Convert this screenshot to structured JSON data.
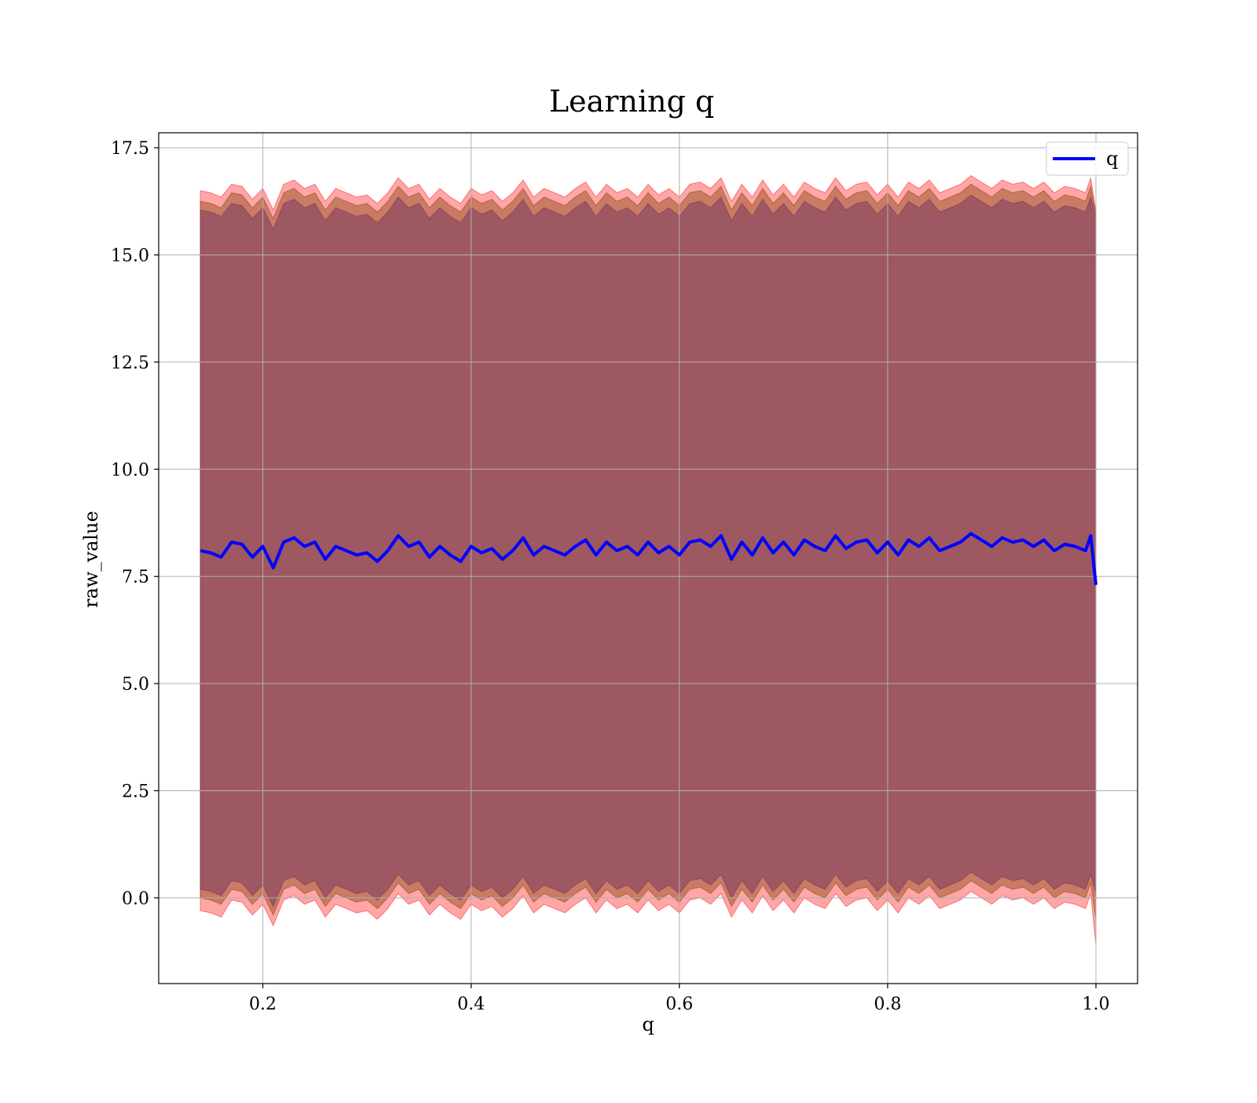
{
  "chart_data": {
    "type": "line",
    "title": "Learning q",
    "xlabel": "q",
    "ylabel": "raw_value",
    "xlim": [
      0.1,
      1.04
    ],
    "ylim": [
      -2,
      17.85
    ],
    "x_ticks": [
      0.2,
      0.4,
      0.6,
      0.8,
      1.0
    ],
    "x_tick_labels": [
      "0.2",
      "0.4",
      "0.6",
      "0.8",
      "1.0"
    ],
    "y_ticks": [
      0.0,
      2.5,
      5.0,
      7.5,
      10.0,
      12.5,
      15.0,
      17.5
    ],
    "y_tick_labels": [
      "0.0",
      "2.5",
      "5.0",
      "7.5",
      "10.0",
      "12.5",
      "15.0",
      "17.5"
    ],
    "grid": true,
    "legend_position": "top-right",
    "legend": [
      {
        "label": "q",
        "color": "#0000ff"
      }
    ],
    "series": [
      {
        "name": "q",
        "color": "#0000ff",
        "x": [
          0.14,
          0.15,
          0.16,
          0.17,
          0.18,
          0.19,
          0.2,
          0.21,
          0.22,
          0.23,
          0.24,
          0.25,
          0.26,
          0.27,
          0.28,
          0.29,
          0.3,
          0.31,
          0.32,
          0.33,
          0.34,
          0.35,
          0.36,
          0.37,
          0.38,
          0.39,
          0.4,
          0.41,
          0.42,
          0.43,
          0.44,
          0.45,
          0.46,
          0.47,
          0.48,
          0.49,
          0.5,
          0.51,
          0.52,
          0.53,
          0.54,
          0.55,
          0.56,
          0.57,
          0.58,
          0.59,
          0.6,
          0.61,
          0.62,
          0.63,
          0.64,
          0.65,
          0.66,
          0.67,
          0.68,
          0.69,
          0.7,
          0.71,
          0.72,
          0.73,
          0.74,
          0.75,
          0.76,
          0.77,
          0.78,
          0.79,
          0.8,
          0.81,
          0.82,
          0.83,
          0.84,
          0.85,
          0.86,
          0.87,
          0.88,
          0.89,
          0.9,
          0.91,
          0.92,
          0.93,
          0.94,
          0.95,
          0.96,
          0.97,
          0.98,
          0.99,
          0.995,
          1.0
        ],
        "y": [
          8.1,
          8.05,
          7.95,
          8.3,
          8.25,
          7.95,
          8.2,
          7.7,
          8.3,
          8.4,
          8.2,
          8.3,
          7.9,
          8.2,
          8.1,
          8.0,
          8.05,
          7.85,
          8.1,
          8.45,
          8.2,
          8.3,
          7.95,
          8.2,
          8.0,
          7.85,
          8.2,
          8.05,
          8.15,
          7.9,
          8.1,
          8.4,
          8.0,
          8.2,
          8.1,
          8.0,
          8.2,
          8.35,
          8.0,
          8.3,
          8.1,
          8.2,
          8.0,
          8.3,
          8.05,
          8.2,
          8.0,
          8.3,
          8.35,
          8.2,
          8.45,
          7.9,
          8.3,
          8.0,
          8.4,
          8.05,
          8.3,
          8.0,
          8.35,
          8.2,
          8.1,
          8.45,
          8.15,
          8.3,
          8.35,
          8.05,
          8.3,
          8.0,
          8.35,
          8.2,
          8.4,
          8.1,
          8.2,
          8.3,
          8.5,
          8.35,
          8.2,
          8.4,
          8.3,
          8.35,
          8.2,
          8.35,
          8.1,
          8.25,
          8.2,
          8.1,
          8.45,
          7.3
        ]
      }
    ],
    "bands": [
      {
        "color": "#ff0000",
        "opacity": 0.35,
        "x": [
          0.14,
          0.15,
          0.16,
          0.17,
          0.18,
          0.19,
          0.2,
          0.21,
          0.22,
          0.23,
          0.24,
          0.25,
          0.26,
          0.27,
          0.28,
          0.29,
          0.3,
          0.31,
          0.32,
          0.33,
          0.34,
          0.35,
          0.36,
          0.37,
          0.38,
          0.39,
          0.4,
          0.41,
          0.42,
          0.43,
          0.44,
          0.45,
          0.46,
          0.47,
          0.48,
          0.49,
          0.5,
          0.51,
          0.52,
          0.53,
          0.54,
          0.55,
          0.56,
          0.57,
          0.58,
          0.59,
          0.6,
          0.61,
          0.62,
          0.63,
          0.64,
          0.65,
          0.66,
          0.67,
          0.68,
          0.69,
          0.7,
          0.71,
          0.72,
          0.73,
          0.74,
          0.75,
          0.76,
          0.77,
          0.78,
          0.79,
          0.8,
          0.81,
          0.82,
          0.83,
          0.84,
          0.85,
          0.86,
          0.87,
          0.88,
          0.89,
          0.9,
          0.91,
          0.92,
          0.93,
          0.94,
          0.95,
          0.96,
          0.97,
          0.98,
          0.99,
          0.995,
          1.0
        ],
        "upper": [
          16.5,
          16.45,
          16.35,
          16.65,
          16.6,
          16.3,
          16.55,
          16.05,
          16.65,
          16.75,
          16.55,
          16.65,
          16.25,
          16.55,
          16.45,
          16.35,
          16.4,
          16.2,
          16.45,
          16.8,
          16.55,
          16.65,
          16.3,
          16.55,
          16.35,
          16.2,
          16.55,
          16.4,
          16.5,
          16.25,
          16.45,
          16.75,
          16.35,
          16.55,
          16.45,
          16.35,
          16.55,
          16.7,
          16.35,
          16.65,
          16.45,
          16.55,
          16.35,
          16.65,
          16.4,
          16.55,
          16.35,
          16.65,
          16.7,
          16.55,
          16.8,
          16.25,
          16.65,
          16.35,
          16.75,
          16.4,
          16.65,
          16.35,
          16.7,
          16.55,
          16.45,
          16.8,
          16.5,
          16.65,
          16.7,
          16.4,
          16.65,
          16.35,
          16.7,
          16.55,
          16.75,
          16.45,
          16.55,
          16.65,
          16.85,
          16.7,
          16.55,
          16.75,
          16.65,
          16.7,
          16.55,
          16.7,
          16.45,
          16.6,
          16.55,
          16.45,
          16.8,
          16.0
        ],
        "lower": [
          -0.3,
          -0.35,
          -0.45,
          -0.05,
          -0.1,
          -0.4,
          -0.15,
          -0.65,
          -0.05,
          0.05,
          -0.15,
          -0.05,
          -0.45,
          -0.15,
          -0.25,
          -0.35,
          -0.3,
          -0.5,
          -0.25,
          0.1,
          -0.15,
          -0.05,
          -0.4,
          -0.15,
          -0.35,
          -0.5,
          -0.15,
          -0.3,
          -0.2,
          -0.45,
          -0.25,
          0.05,
          -0.35,
          -0.15,
          -0.25,
          -0.35,
          -0.15,
          0.0,
          -0.35,
          -0.05,
          -0.25,
          -0.15,
          -0.35,
          -0.05,
          -0.3,
          -0.15,
          -0.35,
          -0.05,
          0.0,
          -0.15,
          0.1,
          -0.45,
          -0.05,
          -0.35,
          0.05,
          -0.3,
          -0.05,
          -0.35,
          0.0,
          -0.15,
          -0.25,
          0.1,
          -0.2,
          -0.05,
          0.0,
          -0.3,
          -0.05,
          -0.35,
          0.0,
          -0.15,
          0.05,
          -0.25,
          -0.15,
          -0.05,
          0.15,
          0.0,
          -0.15,
          0.05,
          -0.05,
          0.0,
          -0.15,
          0.0,
          -0.25,
          -0.1,
          -0.15,
          -0.25,
          0.1,
          -1.1
        ]
      },
      {
        "color": "#8b4513",
        "opacity": 0.45,
        "x": [
          0.14,
          0.15,
          0.16,
          0.17,
          0.18,
          0.19,
          0.2,
          0.21,
          0.22,
          0.23,
          0.24,
          0.25,
          0.26,
          0.27,
          0.28,
          0.29,
          0.3,
          0.31,
          0.32,
          0.33,
          0.34,
          0.35,
          0.36,
          0.37,
          0.38,
          0.39,
          0.4,
          0.41,
          0.42,
          0.43,
          0.44,
          0.45,
          0.46,
          0.47,
          0.48,
          0.49,
          0.5,
          0.51,
          0.52,
          0.53,
          0.54,
          0.55,
          0.56,
          0.57,
          0.58,
          0.59,
          0.6,
          0.61,
          0.62,
          0.63,
          0.64,
          0.65,
          0.66,
          0.67,
          0.68,
          0.69,
          0.7,
          0.71,
          0.72,
          0.73,
          0.74,
          0.75,
          0.76,
          0.77,
          0.78,
          0.79,
          0.8,
          0.81,
          0.82,
          0.83,
          0.84,
          0.85,
          0.86,
          0.87,
          0.88,
          0.89,
          0.9,
          0.91,
          0.92,
          0.93,
          0.94,
          0.95,
          0.96,
          0.97,
          0.98,
          0.99,
          0.995,
          1.0
        ],
        "upper": [
          16.25,
          16.2,
          16.1,
          16.45,
          16.4,
          16.1,
          16.35,
          15.85,
          16.45,
          16.55,
          16.35,
          16.45,
          16.05,
          16.35,
          16.25,
          16.15,
          16.2,
          16.0,
          16.25,
          16.6,
          16.35,
          16.45,
          16.1,
          16.35,
          16.15,
          16.0,
          16.35,
          16.2,
          16.3,
          16.05,
          16.25,
          16.55,
          16.15,
          16.35,
          16.25,
          16.15,
          16.35,
          16.5,
          16.15,
          16.45,
          16.25,
          16.35,
          16.15,
          16.45,
          16.2,
          16.35,
          16.15,
          16.45,
          16.5,
          16.35,
          16.6,
          16.05,
          16.45,
          16.15,
          16.55,
          16.2,
          16.45,
          16.15,
          16.5,
          16.35,
          16.25,
          16.6,
          16.3,
          16.45,
          16.5,
          16.2,
          16.45,
          16.15,
          16.5,
          16.35,
          16.55,
          16.25,
          16.35,
          16.45,
          16.65,
          16.5,
          16.35,
          16.55,
          16.45,
          16.5,
          16.35,
          16.5,
          16.25,
          16.4,
          16.35,
          16.25,
          16.6,
          16.0
        ],
        "lower": [
          0.0,
          -0.05,
          -0.15,
          0.2,
          0.15,
          -0.15,
          0.1,
          -0.4,
          0.2,
          0.3,
          0.1,
          0.2,
          -0.2,
          0.1,
          0.0,
          -0.1,
          -0.05,
          -0.25,
          0.0,
          0.35,
          0.1,
          0.2,
          -0.15,
          0.1,
          -0.1,
          -0.25,
          0.1,
          -0.05,
          0.05,
          -0.2,
          0.0,
          0.3,
          -0.1,
          0.1,
          0.0,
          -0.1,
          0.1,
          0.25,
          -0.1,
          0.2,
          0.0,
          0.1,
          -0.1,
          0.2,
          -0.05,
          0.1,
          -0.1,
          0.2,
          0.25,
          0.1,
          0.35,
          -0.2,
          0.2,
          -0.1,
          0.3,
          -0.05,
          0.2,
          -0.1,
          0.25,
          0.1,
          0.0,
          0.35,
          0.05,
          0.2,
          0.25,
          -0.05,
          0.2,
          -0.1,
          0.25,
          0.1,
          0.3,
          0.0,
          0.1,
          0.2,
          0.4,
          0.25,
          0.1,
          0.3,
          0.2,
          0.25,
          0.1,
          0.25,
          0.0,
          0.15,
          0.1,
          0.0,
          0.35,
          -0.5
        ]
      },
      {
        "color": "#7a3c5e",
        "opacity": 0.55,
        "x": [
          0.14,
          0.15,
          0.16,
          0.17,
          0.18,
          0.19,
          0.2,
          0.21,
          0.22,
          0.23,
          0.24,
          0.25,
          0.26,
          0.27,
          0.28,
          0.29,
          0.3,
          0.31,
          0.32,
          0.33,
          0.34,
          0.35,
          0.36,
          0.37,
          0.38,
          0.39,
          0.4,
          0.41,
          0.42,
          0.43,
          0.44,
          0.45,
          0.46,
          0.47,
          0.48,
          0.49,
          0.5,
          0.51,
          0.52,
          0.53,
          0.54,
          0.55,
          0.56,
          0.57,
          0.58,
          0.59,
          0.6,
          0.61,
          0.62,
          0.63,
          0.64,
          0.65,
          0.66,
          0.67,
          0.68,
          0.69,
          0.7,
          0.71,
          0.72,
          0.73,
          0.74,
          0.75,
          0.76,
          0.77,
          0.78,
          0.79,
          0.8,
          0.81,
          0.82,
          0.83,
          0.84,
          0.85,
          0.86,
          0.87,
          0.88,
          0.89,
          0.9,
          0.91,
          0.92,
          0.93,
          0.94,
          0.95,
          0.96,
          0.97,
          0.98,
          0.99,
          0.995,
          1.0
        ],
        "upper": [
          16.05,
          16.0,
          15.9,
          16.2,
          16.15,
          15.85,
          16.1,
          15.6,
          16.2,
          16.3,
          16.1,
          16.2,
          15.8,
          16.1,
          16.0,
          15.9,
          15.95,
          15.75,
          16.0,
          16.35,
          16.1,
          16.2,
          15.85,
          16.1,
          15.9,
          15.75,
          16.1,
          15.95,
          16.05,
          15.8,
          16.0,
          16.3,
          15.9,
          16.1,
          16.0,
          15.9,
          16.1,
          16.25,
          15.9,
          16.2,
          16.0,
          16.1,
          15.9,
          16.2,
          15.95,
          16.1,
          15.9,
          16.2,
          16.25,
          16.1,
          16.35,
          15.8,
          16.2,
          15.9,
          16.3,
          15.95,
          16.2,
          15.9,
          16.25,
          16.1,
          16.0,
          16.35,
          16.05,
          16.2,
          16.25,
          15.95,
          16.2,
          15.9,
          16.25,
          16.1,
          16.3,
          16.0,
          16.1,
          16.2,
          16.4,
          16.25,
          16.1,
          16.3,
          16.2,
          16.25,
          16.1,
          16.25,
          16.0,
          16.15,
          16.1,
          16.0,
          16.35,
          15.9
        ],
        "lower": [
          0.2,
          0.15,
          0.05,
          0.4,
          0.35,
          0.05,
          0.3,
          -0.2,
          0.4,
          0.5,
          0.3,
          0.4,
          0.0,
          0.3,
          0.2,
          0.1,
          0.15,
          -0.05,
          0.2,
          0.55,
          0.3,
          0.4,
          0.05,
          0.3,
          0.1,
          -0.05,
          0.3,
          0.15,
          0.25,
          0.0,
          0.2,
          0.5,
          0.1,
          0.3,
          0.2,
          0.1,
          0.3,
          0.45,
          0.1,
          0.4,
          0.2,
          0.3,
          0.1,
          0.4,
          0.15,
          0.3,
          0.1,
          0.4,
          0.45,
          0.3,
          0.55,
          0.0,
          0.4,
          0.1,
          0.5,
          0.15,
          0.4,
          0.1,
          0.45,
          0.3,
          0.2,
          0.55,
          0.25,
          0.4,
          0.45,
          0.15,
          0.4,
          0.1,
          0.45,
          0.3,
          0.5,
          0.2,
          0.3,
          0.4,
          0.6,
          0.45,
          0.3,
          0.5,
          0.4,
          0.45,
          0.3,
          0.45,
          0.2,
          0.35,
          0.3,
          0.2,
          0.55,
          0.1
        ]
      }
    ]
  }
}
